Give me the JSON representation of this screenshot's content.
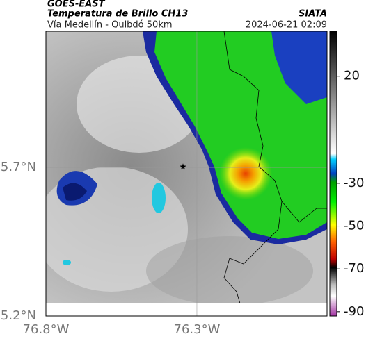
{
  "header": {
    "title": "GOES-EAST",
    "subtitle": "Temperatura de Brillo CH13",
    "location": "Vía Medellín - Quibdó 50km",
    "source": "SIATA",
    "datetime": "2024-06-21 02:09"
  },
  "map": {
    "lonlim": [
      -76.8,
      -75.869
    ],
    "latlim": [
      5.2,
      6.158
    ],
    "lonticks": [
      {
        "value": -76.8,
        "label": "76.8°W"
      },
      {
        "value": -76.3,
        "label": "76.3°W"
      }
    ],
    "latticks": [
      {
        "value": 5.7,
        "label": "5.7°N"
      },
      {
        "value": 5.2,
        "label": "5.2°N"
      }
    ],
    "marker": {
      "lon": -76.346,
      "lat": 5.702
    }
  },
  "colorbar": {
    "lim": [
      -92,
      41
    ],
    "ticks": [
      20,
      -30,
      -50,
      -70,
      -90
    ]
  }
}
